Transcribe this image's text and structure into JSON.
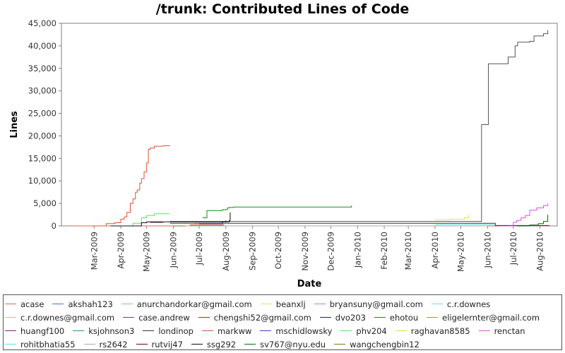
{
  "chart_data": {
    "type": "line",
    "title": "/trunk: Contributed Lines of Code",
    "xlabel": "Date",
    "ylabel": "Lines",
    "x_range": [
      "2009-01-22",
      "2010-08-21"
    ],
    "ylim": [
      0,
      45000
    ],
    "y_ticks": [
      {
        "value": 0,
        "label": "0"
      },
      {
        "value": 5000,
        "label": "5,000"
      },
      {
        "value": 10000,
        "label": "10,000"
      },
      {
        "value": 15000,
        "label": "15,000"
      },
      {
        "value": 20000,
        "label": "20,000"
      },
      {
        "value": 25000,
        "label": "25,000"
      },
      {
        "value": 30000,
        "label": "30,000"
      },
      {
        "value": 35000,
        "label": "35,000"
      },
      {
        "value": 40000,
        "label": "40,000"
      },
      {
        "value": 45000,
        "label": "45,000"
      }
    ],
    "x_ticks": [
      {
        "date": "2009-03-01",
        "label": "Mar-2009"
      },
      {
        "date": "2009-04-01",
        "label": "Apr-2009"
      },
      {
        "date": "2009-05-01",
        "label": "May-2009"
      },
      {
        "date": "2009-06-01",
        "label": "Jun-2009"
      },
      {
        "date": "2009-07-01",
        "label": "Jul-2009"
      },
      {
        "date": "2009-08-01",
        "label": "Aug-2009"
      },
      {
        "date": "2009-09-01",
        "label": "Sep-2009"
      },
      {
        "date": "2009-10-01",
        "label": "Oct-2009"
      },
      {
        "date": "2009-11-01",
        "label": "Nov-2009"
      },
      {
        "date": "2009-12-01",
        "label": "Dec-2009"
      },
      {
        "date": "2010-01-01",
        "label": "Jan-2010"
      },
      {
        "date": "2010-02-01",
        "label": "Feb-2010"
      },
      {
        "date": "2010-03-01",
        "label": "Mar-2010"
      },
      {
        "date": "2010-04-01",
        "label": "Apr-2010"
      },
      {
        "date": "2010-05-01",
        "label": "May-2010"
      },
      {
        "date": "2010-06-01",
        "label": "Jun-2010"
      },
      {
        "date": "2010-07-01",
        "label": "Jul-2010"
      },
      {
        "date": "2010-08-01",
        "label": "Aug-2010"
      }
    ],
    "grid": false,
    "legend_position": "bottom",
    "series": [
      {
        "name": "acase",
        "color": "#e0605a",
        "x": [
          "2009-02-01",
          "2010-08-15"
        ],
        "y": [
          0,
          0
        ]
      },
      {
        "name": "akshah123",
        "color": "#4a6fe0",
        "x": [
          "2009-06-25",
          "2009-07-30"
        ],
        "y": [
          600,
          600
        ]
      },
      {
        "name": "anurchandorkar@gmail.com",
        "color": "#66dd66",
        "x": [
          "2009-04-01",
          "2009-04-15",
          "2009-04-25",
          "2009-05-01",
          "2009-05-10",
          "2009-05-28"
        ],
        "y": [
          0,
          600,
          1800,
          2300,
          2700,
          2700
        ]
      },
      {
        "name": "beanxlj",
        "color": "#e8e060",
        "x": [
          "2010-04-01",
          "2010-04-20",
          "2010-05-05",
          "2010-05-10"
        ],
        "y": [
          1400,
          1500,
          1800,
          2500
        ]
      },
      {
        "name": "bryansuny@gmail.com",
        "color": "#dd66dd",
        "x": [
          "2010-06-15",
          "2010-07-30"
        ],
        "y": [
          0,
          0
        ]
      },
      {
        "name": "c.r.downes",
        "color": "#66dddd",
        "x": [
          "2010-04-01",
          "2010-06-10"
        ],
        "y": [
          300,
          300
        ]
      },
      {
        "name": "c.r.downes@gmail.com",
        "color": "#f0b0a0",
        "x": [
          "2009-06-01",
          "2009-06-30"
        ],
        "y": [
          0,
          0
        ]
      },
      {
        "name": "case.andrew",
        "color": "#555555",
        "x": [
          "2009-05-28",
          "2010-05-20",
          "2010-05-25",
          "2010-06-01",
          "2010-06-02",
          "2010-06-20",
          "2010-06-25",
          "2010-07-01",
          "2010-07-03",
          "2010-07-06",
          "2010-07-20",
          "2010-07-25",
          "2010-08-05",
          "2010-08-10"
        ],
        "y": [
          1000,
          1000,
          22500,
          22500,
          36000,
          36000,
          37500,
          37500,
          40000,
          40800,
          41000,
          42200,
          42700,
          43500
        ]
      },
      {
        "name": "chengshi52@gmail.com",
        "color": "#cc2200",
        "x": [
          "2009-06-20",
          "2009-07-30"
        ],
        "y": [
          200,
          200
        ]
      },
      {
        "name": "dvo203",
        "color": "#1a1a90",
        "x": [
          "2009-07-01",
          "2009-07-25",
          "2009-07-28",
          "2009-08-01"
        ],
        "y": [
          500,
          500,
          900,
          1200
        ]
      },
      {
        "name": "ehotou",
        "color": "#1a8a1a",
        "x": [
          "2009-07-05",
          "2009-07-10",
          "2009-07-28",
          "2009-08-03",
          "2009-08-05",
          "2009-08-10",
          "2009-12-20",
          "2009-12-25"
        ],
        "y": [
          1800,
          3400,
          3600,
          4000,
          4100,
          4200,
          4200,
          4500
        ]
      },
      {
        "name": "eligelernter@gmail.com",
        "color": "#9a9a20",
        "x": [
          "2009-06-01",
          "2009-06-20"
        ],
        "y": [
          0,
          0
        ]
      },
      {
        "name": "huangf100",
        "color": "#8a1a8a",
        "x": [
          "2009-06-01",
          "2009-06-10"
        ],
        "y": [
          0,
          0
        ]
      },
      {
        "name": "ksjohnson3",
        "color": "#1a9a9a",
        "x": [
          "2009-07-01",
          "2009-07-15"
        ],
        "y": [
          0,
          0
        ]
      },
      {
        "name": "londinop",
        "color": "#333333",
        "x": [
          "2009-05-28",
          "2010-06-10",
          "2010-06-10",
          "2010-08-12"
        ],
        "y": [
          600,
          600,
          100,
          100
        ]
      },
      {
        "name": "markww",
        "color": "#e05030",
        "x": [
          "2009-02-25",
          "2009-03-15",
          "2009-03-25",
          "2009-04-01",
          "2009-04-05",
          "2009-04-08",
          "2009-04-12",
          "2009-04-15",
          "2009-04-18",
          "2009-04-20",
          "2009-04-23",
          "2009-04-25",
          "2009-04-28",
          "2009-05-01",
          "2009-05-03",
          "2009-05-05",
          "2009-05-10",
          "2009-05-20",
          "2009-05-28"
        ],
        "y": [
          0,
          500,
          700,
          1500,
          2000,
          3000,
          5000,
          6000,
          7500,
          8000,
          9500,
          10500,
          12000,
          14000,
          17000,
          17300,
          17700,
          17800,
          17800
        ]
      },
      {
        "name": "mschidlowsky",
        "color": "#4a3ab0",
        "x": [
          "2009-07-01",
          "2009-08-01"
        ],
        "y": [
          0,
          0
        ]
      },
      {
        "name": "phv204",
        "color": "#5ee05e",
        "x": [
          "2010-04-01",
          "2010-06-01"
        ],
        "y": [
          0,
          0
        ]
      },
      {
        "name": "raghavan8585",
        "color": "#e0e040",
        "x": [
          "2010-04-01",
          "2010-05-01"
        ],
        "y": [
          0,
          0
        ]
      },
      {
        "name": "renctan",
        "color": "#e050e0",
        "x": [
          "2010-06-25",
          "2010-07-01",
          "2010-07-05",
          "2010-07-10",
          "2010-07-15",
          "2010-07-20",
          "2010-07-28",
          "2010-08-05",
          "2010-08-10"
        ],
        "y": [
          0,
          800,
          1200,
          1800,
          2300,
          3500,
          4000,
          4500,
          5000
        ]
      },
      {
        "name": "rohitbhatia55",
        "color": "#60e0e0",
        "x": [
          "2010-05-01",
          "2010-06-01"
        ],
        "y": [
          0,
          0
        ]
      },
      {
        "name": "rs2642",
        "color": "#aaaaaa",
        "x": [
          "2009-06-01",
          "2010-06-01"
        ],
        "y": [
          0,
          0
        ]
      },
      {
        "name": "rutvij47",
        "color": "#5a0a0a",
        "x": [
          "2009-05-05",
          "2009-05-20"
        ],
        "y": [
          800,
          900
        ]
      },
      {
        "name": "ssg292",
        "color": "#111111",
        "x": [
          "2009-03-20",
          "2009-04-25",
          "2009-05-01",
          "2009-07-25",
          "2009-08-05",
          "2009-08-06"
        ],
        "y": [
          0,
          700,
          900,
          900,
          1200,
          3000
        ]
      },
      {
        "name": "sv767@nyu.edu",
        "color": "#0a6a0a",
        "x": [
          "2010-07-05",
          "2010-07-20",
          "2010-07-30",
          "2010-08-05",
          "2010-08-10"
        ],
        "y": [
          0,
          200,
          500,
          1000,
          2500
        ]
      },
      {
        "name": "wangchengbin12",
        "color": "#7a7a10",
        "x": [
          "2009-06-01",
          "2009-06-15"
        ],
        "y": [
          0,
          0
        ]
      }
    ]
  }
}
